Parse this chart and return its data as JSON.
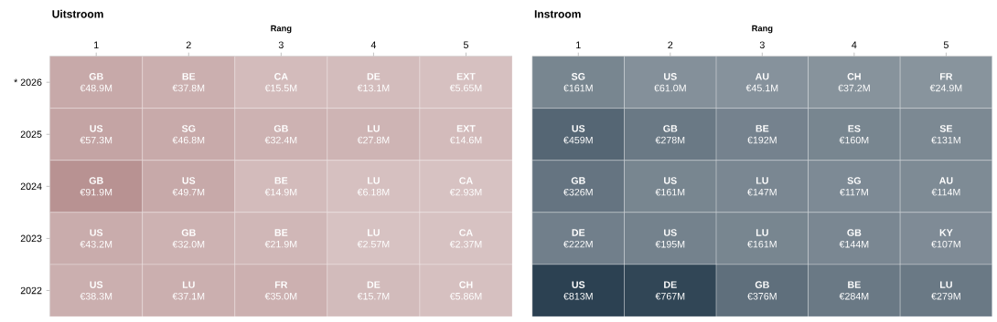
{
  "chart_data": [
    {
      "type": "heatmap",
      "title": "Uitstroom",
      "xlabel": "Rang",
      "color": "#b89292",
      "categories": [
        "1",
        "2",
        "3",
        "4",
        "5"
      ],
      "y_categories": [
        "* 2026",
        "2025",
        "2024",
        "2023",
        "2022"
      ],
      "cells": [
        [
          48.9,
          37.8,
          15.5,
          13.1,
          5.65
        ],
        [
          57.3,
          46.8,
          32.4,
          27.8,
          14.6
        ],
        [
          91.9,
          49.7,
          14.9,
          6.18,
          2.93
        ],
        [
          43.2,
          32.0,
          21.9,
          2.57,
          2.37
        ],
        [
          38.3,
          37.1,
          35.0,
          15.7,
          5.86
        ]
      ],
      "cell_labels": [
        [
          "**GB** €48.9M",
          "**BE** €37.8M",
          "**CA** €15.5M",
          "**DE** €13.1M",
          "**EXT** €5.65M"
        ],
        [
          "**US** €57.3M",
          "**SG** €46.8M",
          "**GB** €32.4M",
          "**LU** €27.8M",
          "**EXT** €14.6M"
        ],
        [
          "**GB** €91.9M",
          "**US** €49.7M",
          "**BE** €14.9M",
          "**LU** €6.18M",
          "**CA** €2.93M"
        ],
        [
          "**US** €43.2M",
          "**GB** €32.0M",
          "**BE** €21.9M",
          "**LU** €2.57M",
          "**CA** €2.37M"
        ],
        [
          "**US** €38.3M",
          "**LU** €37.1M",
          "**FR** €35.0M",
          "**DE** €15.7M",
          "**CH** €5.86M"
        ]
      ]
    },
    {
      "type": "heatmap",
      "title": "Instroom",
      "xlabel": "Rang",
      "color": "#2c4152",
      "tick_labels": "x",
      "categories": [
        "1",
        "2",
        "3",
        "4",
        "5"
      ],
      "y_categories": [
        null,
        null,
        null,
        null,
        null
      ],
      "cells": [
        [
          161,
          61.0,
          45.1,
          37.2,
          24.9
        ],
        [
          459,
          278,
          192,
          160,
          131
        ],
        [
          326,
          161,
          147,
          117,
          114
        ],
        [
          222,
          195,
          161,
          144,
          107
        ],
        [
          813,
          767,
          376,
          284,
          279
        ]
      ],
      "cell_labels": [
        [
          "**SG** €161M",
          "**US** €61.0M",
          "**AU** €45.1M",
          "**CH** €37.2M",
          "**FR** €24.9M"
        ],
        [
          "**US** €459M",
          "**GB** €278M",
          "**BE** €192M",
          "**ES** €160M",
          "**SE** €131M"
        ],
        [
          "**GB** €326M",
          "**US** €161M",
          "**LU** €147M",
          "**SG** €117M",
          "**AU** €114M"
        ],
        [
          "**DE** €222M",
          "**US** €195M",
          "**LU** €161M",
          "**GB** €144M",
          "**KY** €107M"
        ],
        [
          "**US** €813M",
          "**DE** €767M",
          "**GB** €376M",
          "**BE** €284M",
          "**LU** €279M"
        ]
      ]
    }
  ]
}
